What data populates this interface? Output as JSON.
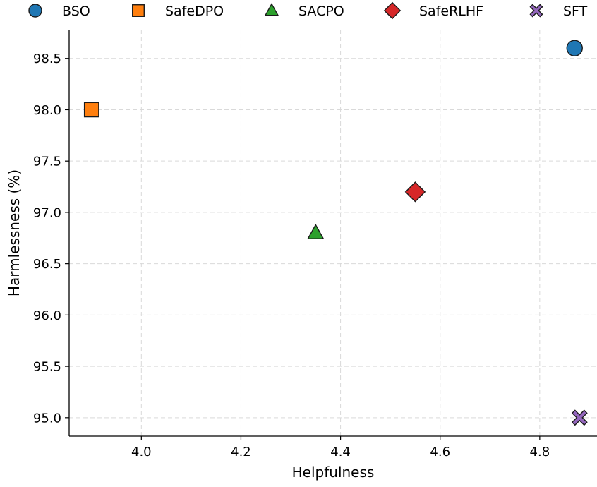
{
  "chart_data": {
    "type": "scatter",
    "title": "",
    "xlabel": "Helpfulness",
    "ylabel": "Harmlessness (%)",
    "xlim": [
      3.855,
      4.915
    ],
    "ylim": [
      94.82,
      98.78
    ],
    "xticks": [
      4.0,
      4.2,
      4.4,
      4.6,
      4.8
    ],
    "xtick_labels": [
      "4.0",
      "4.2",
      "4.4",
      "4.6",
      "4.8"
    ],
    "yticks": [
      95.0,
      95.5,
      96.0,
      96.5,
      97.0,
      97.5,
      98.0,
      98.5
    ],
    "ytick_labels": [
      "95.0",
      "95.5",
      "96.0",
      "96.5",
      "97.0",
      "97.5",
      "98.0",
      "98.5"
    ],
    "grid": true,
    "legend_position": "top",
    "series": [
      {
        "name": "BSO",
        "marker": "circle",
        "color": "#1f77b4",
        "x": 4.87,
        "y": 98.6
      },
      {
        "name": "SafeDPO",
        "marker": "square",
        "color": "#ff7f0e",
        "x": 3.9,
        "y": 98.0
      },
      {
        "name": "SACPO",
        "marker": "triangle",
        "color": "#2ca02c",
        "x": 4.35,
        "y": 96.8
      },
      {
        "name": "SafeRLHF",
        "marker": "diamond",
        "color": "#d62728",
        "x": 4.55,
        "y": 97.2
      },
      {
        "name": "SFT",
        "marker": "x",
        "color": "#9467bd",
        "x": 4.88,
        "y": 95.0
      }
    ]
  }
}
